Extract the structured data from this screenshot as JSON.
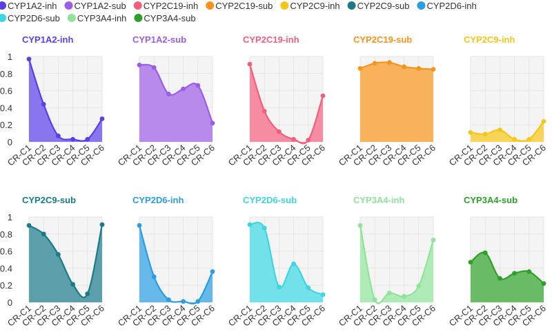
{
  "chart_data": {
    "type": "area",
    "categories": [
      "CR-C1",
      "CR-C2",
      "CR-C3",
      "CR-C4",
      "CR-C5",
      "CR-C6"
    ],
    "y_ticks": [
      "0",
      "0.2",
      "0.4",
      "0.6",
      "0.8",
      "1"
    ],
    "ylim": [
      0,
      1
    ],
    "legend_position": "top",
    "series": [
      {
        "name": "CYP1A2-inh",
        "color": "#5b3fe6",
        "values": [
          0.97,
          0.44,
          0.07,
          0.03,
          0.03,
          0.27
        ]
      },
      {
        "name": "CYP1A2-sub",
        "color": "#9b5de5",
        "values": [
          0.9,
          0.87,
          0.56,
          0.62,
          0.66,
          0.22
        ]
      },
      {
        "name": "CYP2C19-inh",
        "color": "#f25f7d",
        "values": [
          0.91,
          0.36,
          0.12,
          0.03,
          0.02,
          0.54
        ]
      },
      {
        "name": "CYP2C19-sub",
        "color": "#f7941d",
        "values": [
          0.86,
          0.92,
          0.93,
          0.88,
          0.86,
          0.85
        ]
      },
      {
        "name": "CYP2C9-inh",
        "color": "#f5c518",
        "values": [
          0.11,
          0.09,
          0.14,
          0.03,
          0.03,
          0.24
        ]
      },
      {
        "name": "CYP2C9-sub",
        "color": "#1a7a87",
        "values": [
          0.9,
          0.8,
          0.56,
          0.21,
          0.1,
          0.91
        ]
      },
      {
        "name": "CYP2D6-inh",
        "color": "#2b9de0",
        "values": [
          0.9,
          0.3,
          0.03,
          0.01,
          0.01,
          0.36
        ]
      },
      {
        "name": "CYP2D6-sub",
        "color": "#3dd6e0",
        "values": [
          0.91,
          0.87,
          0.18,
          0.45,
          0.17,
          0.09
        ]
      },
      {
        "name": "CYP3A4-inh",
        "color": "#8fe39a",
        "values": [
          0.9,
          0.03,
          0.11,
          0.07,
          0.19,
          0.73
        ]
      },
      {
        "name": "CYP3A4-sub",
        "color": "#2ea02a",
        "values": [
          0.47,
          0.58,
          0.28,
          0.34,
          0.36,
          0.22
        ]
      }
    ]
  }
}
